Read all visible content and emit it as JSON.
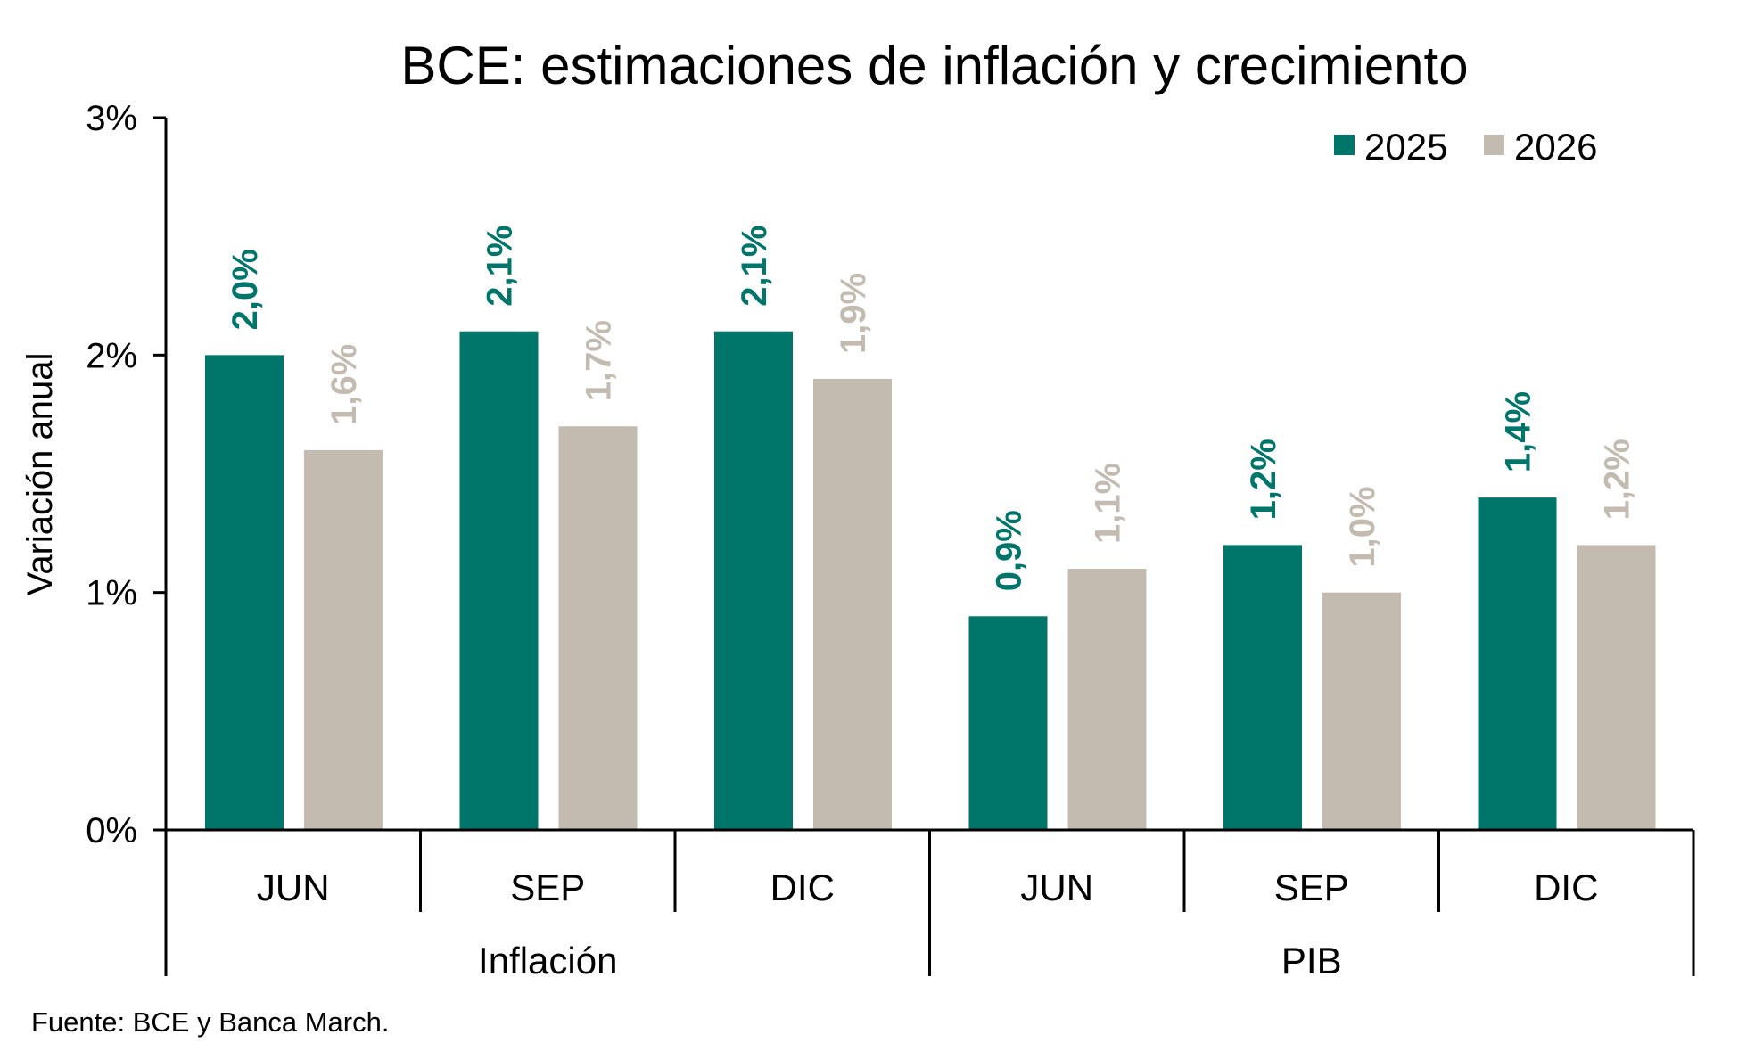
{
  "colors": {
    "series_2025": "#00766A",
    "series_2026": "#C3BBB0",
    "axis": "#000000"
  },
  "chart_data": {
    "type": "bar",
    "title": "BCE: estimaciones de inflación y crecimiento",
    "ylabel": "Variación anual",
    "xlabel": "",
    "ylim": [
      0,
      3
    ],
    "yticks": [
      0,
      1,
      2,
      3
    ],
    "ytick_labels": [
      "0%",
      "1%",
      "2%",
      "3%"
    ],
    "grid": false,
    "legend_position": "top-right",
    "groups": [
      {
        "label": "Inflación",
        "categories": [
          "JUN",
          "SEP",
          "DIC"
        ]
      },
      {
        "label": "PIB",
        "categories": [
          "JUN",
          "SEP",
          "DIC"
        ]
      }
    ],
    "categories": [
      "JUN",
      "SEP",
      "DIC",
      "JUN",
      "SEP",
      "DIC"
    ],
    "series": [
      {
        "name": "2025",
        "values": [
          2.0,
          2.1,
          2.1,
          0.9,
          1.2,
          1.4
        ],
        "labels": [
          "2,0%",
          "2,1%",
          "2,1%",
          "0,9%",
          "1,2%",
          "1,4%"
        ]
      },
      {
        "name": "2026",
        "values": [
          1.6,
          1.7,
          1.9,
          1.1,
          1.0,
          1.2
        ],
        "labels": [
          "1,6%",
          "1,7%",
          "1,9%",
          "1,1%",
          "1,0%",
          "1,2%"
        ]
      }
    ],
    "source_note": "Fuente: BCE y Banca March."
  }
}
